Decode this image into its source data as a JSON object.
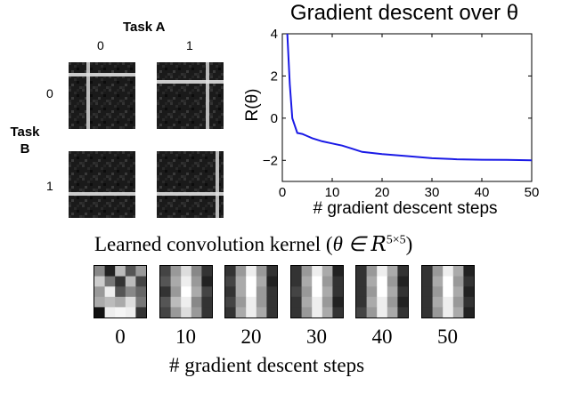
{
  "task_grid": {
    "task_a_label": "Task A",
    "task_b_label_line1": "Task",
    "task_b_label_line2": "B",
    "col_labels": [
      "0",
      "1"
    ],
    "row_labels": [
      "0",
      "1"
    ],
    "images": [
      {
        "row": 0,
        "col": 0,
        "lines": "vertical-left, horizontal-top"
      },
      {
        "row": 0,
        "col": 1,
        "lines": "vertical-right, horizontal-top"
      },
      {
        "row": 1,
        "col": 0,
        "lines": "horizontal-bottom"
      },
      {
        "row": 1,
        "col": 1,
        "lines": "vertical-right, horizontal-bottom"
      }
    ]
  },
  "chart_data": {
    "type": "line",
    "title": "Gradient descent over θ",
    "xlabel": "# gradient descent steps",
    "ylabel": "R(θ)",
    "xlim": [
      0,
      50
    ],
    "ylim": [
      -3,
      4
    ],
    "xticks": [
      0,
      10,
      20,
      30,
      40,
      50
    ],
    "yticks": [
      4,
      2,
      0,
      -2
    ],
    "grid": false,
    "series": [
      {
        "color": "#1a1ae6",
        "x": [
          1,
          1.5,
          2,
          3,
          4,
          5,
          6,
          8,
          10,
          12,
          14,
          16,
          18,
          20,
          25,
          30,
          35,
          40,
          45,
          50
        ],
        "y": [
          4,
          1.6,
          0.0,
          -0.7,
          -0.75,
          -0.85,
          -0.95,
          -1.1,
          -1.2,
          -1.3,
          -1.45,
          -1.6,
          -1.65,
          -1.7,
          -1.8,
          -1.9,
          -1.95,
          -1.97,
          -1.98,
          -2.0
        ]
      }
    ]
  },
  "kernels": {
    "title_text": "Learned convolution kernel (",
    "title_theta": "θ ∈ ",
    "title_R": "R",
    "title_sup": "5×5",
    "title_close": ")",
    "xlabel": "# gradient descent steps",
    "labels": [
      "0",
      "10",
      "20",
      "30",
      "40",
      "50"
    ]
  }
}
